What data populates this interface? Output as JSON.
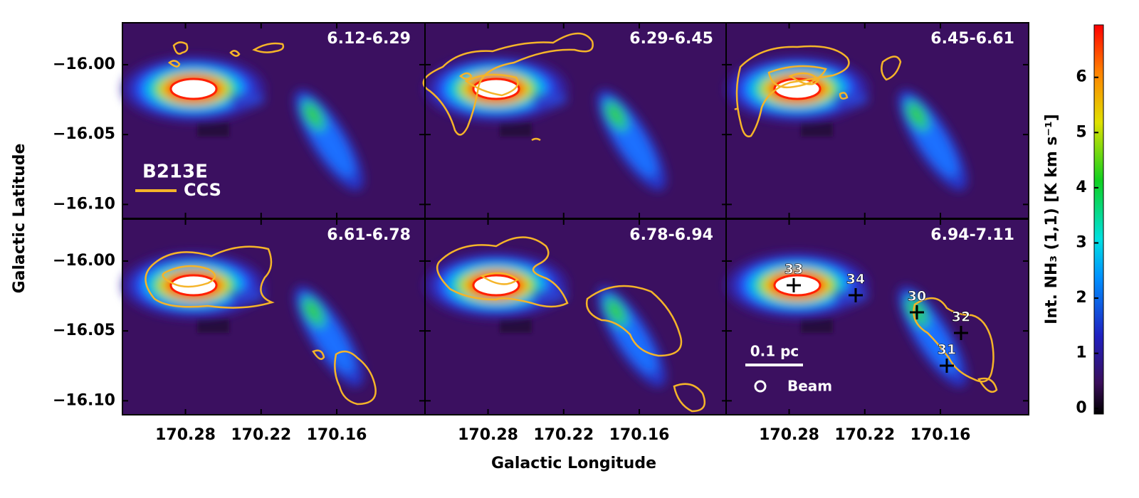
{
  "chart_data": {
    "type": "channel-map",
    "panels": [
      "6.12-6.29",
      "6.29-6.45",
      "6.45-6.61",
      "6.61-6.78",
      "6.78-6.94",
      "6.94-7.11"
    ],
    "xlabel": "Galactic Longitude",
    "ylabel": "Galactic Latitude",
    "xlim": [
      170.33,
      170.09
    ],
    "ylim": [
      -16.11,
      -15.97
    ],
    "xticks": [
      170.28,
      170.22,
      170.16
    ],
    "yticks": [
      {
        "value": -16.0,
        "label": "−16.00"
      },
      {
        "value": -16.05,
        "label": "−16.05"
      },
      {
        "value": -16.1,
        "label": "−16.10"
      }
    ],
    "colorbar": {
      "label": "Int. NH₃ (1,1) [K km s⁻¹]",
      "clim": [
        -0.1,
        6.95
      ],
      "ticks": [
        0,
        1,
        2,
        3,
        4,
        5,
        6
      ]
    },
    "contour_color": "#f5b429",
    "annotations": {
      "region": "B213E",
      "contour_legend": "CCS",
      "scale_bar": "0.1 pc",
      "beam": "Beam"
    },
    "sources": [
      "33",
      "34",
      "30",
      "31",
      "32"
    ]
  }
}
